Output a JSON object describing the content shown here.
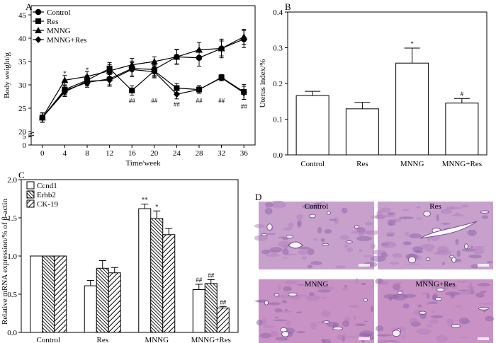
{
  "panels": {
    "A": "A",
    "B": "B",
    "C": "C",
    "D": "D"
  },
  "chart_data": [
    {
      "type": "line",
      "panel": "A",
      "xlabel": "Time/week",
      "ylabel": "Body weight/g",
      "x": [
        0,
        4,
        8,
        12,
        16,
        20,
        24,
        28,
        32,
        36
      ],
      "xticks": [
        0,
        4,
        8,
        12,
        16,
        20,
        24,
        28,
        32,
        36
      ],
      "yticks": [
        0,
        5,
        20,
        25,
        30,
        35,
        40,
        45
      ],
      "ylim": [
        0,
        47
      ],
      "axis_break": true,
      "legend_position": "top-left",
      "series": [
        {
          "name": "Control",
          "marker": "circle",
          "values": [
            23.0,
            28.8,
            30.5,
            31.3,
            33.5,
            33.3,
            36.0,
            35.8,
            37.8,
            39.8
          ],
          "errors": [
            1.0,
            1.0,
            1.0,
            1.3,
            1.6,
            1.3,
            1.5,
            1.8,
            1.6,
            1.8
          ]
        },
        {
          "name": "Res",
          "marker": "square",
          "values": [
            23.0,
            29.0,
            31.0,
            33.5,
            28.8,
            33.0,
            29.3,
            29.0,
            31.6,
            28.5
          ],
          "errors": [
            1.0,
            1.0,
            1.0,
            1.3,
            1.0,
            1.3,
            1.0,
            0.8,
            0.6,
            1.6
          ]
        },
        {
          "name": "MNNG",
          "marker": "triangle",
          "values": [
            23.0,
            31.0,
            31.8,
            33.0,
            34.3,
            35.0,
            36.0,
            37.5,
            37.8,
            40.3
          ],
          "errors": [
            1.0,
            1.0,
            1.1,
            1.3,
            1.4,
            1.0,
            1.6,
            1.6,
            2.0,
            1.6
          ]
        },
        {
          "name": "MNNG+Res",
          "marker": "diamond",
          "values": [
            23.0,
            28.5,
            30.8,
            31.0,
            33.3,
            32.8,
            28.0,
            29.0,
            31.5,
            28.3
          ],
          "errors": [
            1.0,
            1.0,
            1.0,
            1.3,
            1.5,
            1.3,
            1.0,
            0.8,
            0.6,
            1.4
          ]
        }
      ],
      "annotations": [
        {
          "x": 4,
          "y": 32.4,
          "text": "*"
        },
        {
          "x": 8,
          "y": 33.2,
          "text": "*"
        },
        {
          "x": 16,
          "y": 26.6,
          "text": "##"
        },
        {
          "x": 20,
          "y": 26.6,
          "text": "##"
        },
        {
          "x": 24,
          "y": 25.8,
          "text": "##"
        },
        {
          "x": 28,
          "y": 26.6,
          "text": "##"
        },
        {
          "x": 32,
          "y": 26.6,
          "text": "##"
        },
        {
          "x": 36,
          "y": 25.4,
          "text": "##"
        }
      ]
    },
    {
      "type": "bar",
      "panel": "B",
      "ylabel": "Uterus index/%",
      "categories": [
        "Control",
        "Res",
        "MNNG",
        "MNNG+Res"
      ],
      "values": [
        0.166,
        0.129,
        0.257,
        0.145
      ],
      "errors": [
        0.012,
        0.018,
        0.042,
        0.013
      ],
      "significance": [
        "",
        "",
        "*",
        "#"
      ],
      "ylim": [
        0.0,
        0.4
      ],
      "yticks": [
        0.0,
        0.1,
        0.2,
        0.3,
        0.4
      ],
      "fill": "#ffffff"
    },
    {
      "type": "bar",
      "panel": "C",
      "ylabel": "Relative mRNA expression/% of β-actin",
      "categories": [
        "Control",
        "Res",
        "MNNG",
        "MNNG+Res"
      ],
      "ylim": [
        0.0,
        2.0
      ],
      "yticks": [
        0.0,
        0.5,
        1.0,
        1.5,
        2.0
      ],
      "legend_position": "top-left",
      "series": [
        {
          "name": "Ccnd1",
          "pattern": "open",
          "values": [
            1.0,
            0.61,
            1.62,
            0.56
          ],
          "errors": [
            0.0,
            0.07,
            0.06,
            0.07
          ],
          "significance": [
            "",
            "",
            "**",
            "##"
          ]
        },
        {
          "name": "Erbb2",
          "pattern": "dense-hatch",
          "values": [
            1.0,
            0.84,
            1.49,
            0.64
          ],
          "errors": [
            0.0,
            0.1,
            0.1,
            0.05
          ],
          "significance": [
            "",
            "",
            "*",
            "##"
          ]
        },
        {
          "name": "CK-19",
          "pattern": "hatch",
          "values": [
            1.0,
            0.78,
            1.28,
            0.32
          ],
          "errors": [
            0.0,
            0.07,
            0.08,
            0.02
          ],
          "significance": [
            "",
            "",
            "",
            "##"
          ]
        }
      ]
    },
    {
      "type": "image-grid",
      "panel": "D",
      "images": [
        {
          "label": "Control"
        },
        {
          "label": "Res"
        },
        {
          "label": "MNNG"
        },
        {
          "label": "MNNG+Res"
        }
      ],
      "stain_colors": [
        "#c7a0cc",
        "#b27fbc",
        "#8c63a8"
      ]
    }
  ]
}
